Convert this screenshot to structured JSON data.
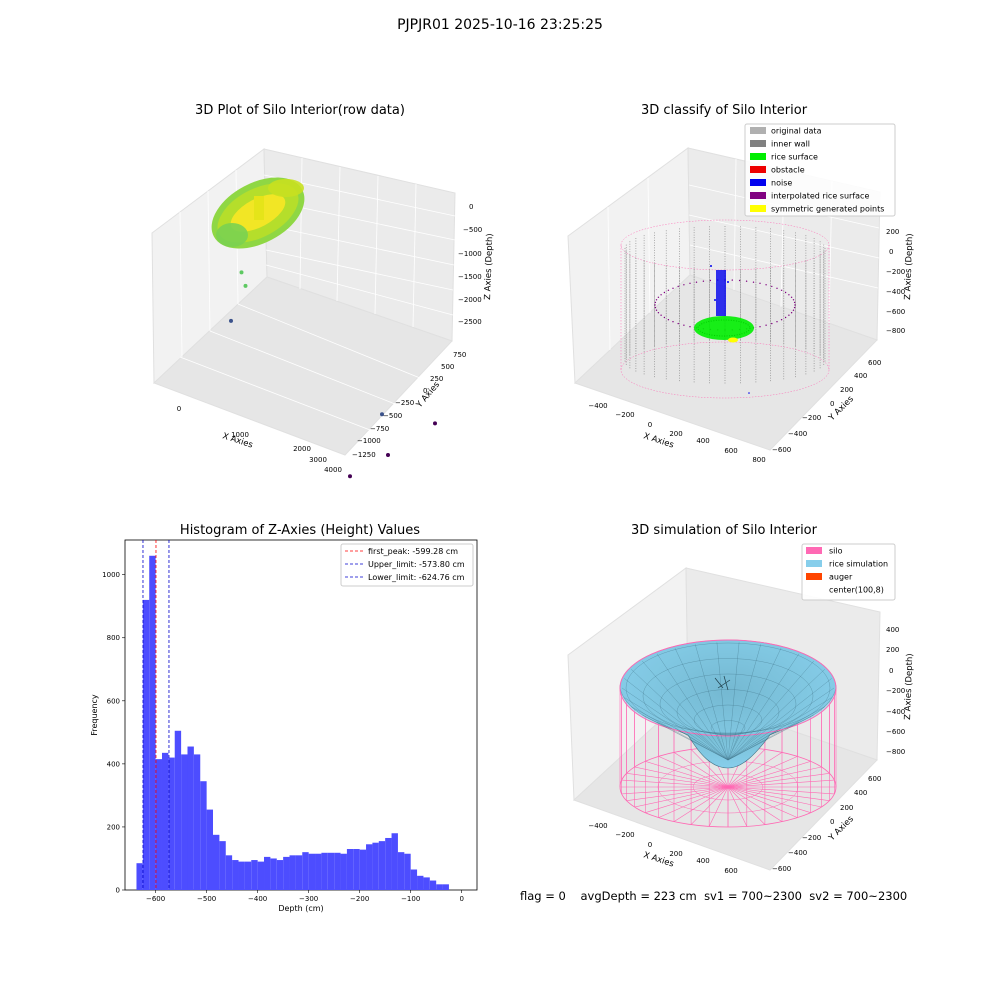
{
  "figure": {
    "suptitle": "PJPJR01 2025-10-16 23:25:25",
    "footer": {
      "flag": "flag = 0",
      "avg_depth": "avgDepth = 223 cm",
      "sv1": "sv1 = 700~2300",
      "sv2": "sv2 = 700~2300"
    }
  },
  "chart_data": [
    {
      "type": "scatter3d",
      "title": "3D Plot of Silo Interior(row data)",
      "xlabel": "X Axies",
      "ylabel": "Y Axies",
      "zlabel": "Z Axies (Depth)",
      "x_ticks": [
        "0",
        "1000",
        "2000",
        "3000",
        "4000"
      ],
      "y_ticks": [
        "750",
        "500",
        "250",
        "0",
        "−250",
        "−500",
        "−750",
        "−1000",
        "−1250"
      ],
      "z_ticks": [
        "0",
        "−500",
        "−1000",
        "−1500",
        "−2000",
        "−2500"
      ],
      "colormap": "viridis",
      "points": [
        {
          "x": 3200,
          "y": 100,
          "z": -2400
        },
        {
          "x": 3600,
          "y": 400,
          "z": -2700
        },
        {
          "x": 3500,
          "y": -50,
          "z": -2900
        },
        {
          "x": 3400,
          "y": -400,
          "z": -3000
        },
        {
          "x": 3000,
          "y": -800,
          "z": -3050
        },
        {
          "x": 3100,
          "y": -700,
          "z": -3000
        },
        {
          "x": 600,
          "y": 300,
          "z": -2200
        },
        {
          "x": 900,
          "y": 200,
          "z": -900
        },
        {
          "x": 1100,
          "y": 100,
          "z": -950
        }
      ]
    },
    {
      "type": "scatter3d",
      "title": "3D classify of Silo Interior",
      "xlabel": "X Axies",
      "ylabel": "Y Axies",
      "zlabel": "Z Axies (Depth)",
      "x_ticks": [
        "−400",
        "−200",
        "0",
        "200",
        "400",
        "600",
        "800"
      ],
      "y_ticks": [
        "600",
        "400",
        "200",
        "0",
        "−200",
        "−400",
        "−600"
      ],
      "z_ticks": [
        "200",
        "0",
        "−200",
        "−400",
        "−600",
        "−800"
      ],
      "legend_position": "top-right",
      "legend": [
        {
          "label": "original data",
          "color": "#b0b0b0"
        },
        {
          "label": "inner wall",
          "color": "#808080"
        },
        {
          "label": "rice surface",
          "color": "#00ee00"
        },
        {
          "label": "obstacle",
          "color": "#ee0000"
        },
        {
          "label": "noise",
          "color": "#0000ee"
        },
        {
          "label": "interpolated rice surface",
          "color": "#800080"
        },
        {
          "label": "symmetric generated points",
          "color": "#ffff00"
        }
      ]
    },
    {
      "type": "bar",
      "title": "Histogram of Z-Axies (Height) Values",
      "xlabel": "Depth (cm)",
      "ylabel": "Frequency",
      "xlim": [
        -660,
        30
      ],
      "ylim": [
        0,
        1110
      ],
      "x_ticks": [
        -600,
        -500,
        -400,
        -300,
        -200,
        -100,
        0
      ],
      "x_tick_labels": [
        "−600",
        "−500",
        "−400",
        "−300",
        "−200",
        "−100",
        "0"
      ],
      "y_ticks": [
        0,
        200,
        400,
        600,
        800,
        1000
      ],
      "bar_color": "#4d4dff",
      "bin_width": 12.5,
      "bin_start": -637.5,
      "values": [
        85,
        920,
        1060,
        415,
        435,
        420,
        505,
        430,
        455,
        430,
        345,
        255,
        175,
        155,
        110,
        95,
        90,
        90,
        95,
        90,
        105,
        100,
        95,
        105,
        110,
        110,
        120,
        115,
        115,
        118,
        118,
        118,
        115,
        130,
        130,
        128,
        145,
        150,
        155,
        165,
        180,
        120,
        115,
        65,
        45,
        40,
        30,
        18,
        18
      ],
      "lines": [
        {
          "x": -599.28,
          "color": "#ff0000",
          "label": "first_peak: -599.28 cm"
        },
        {
          "x": -573.8,
          "color": "#0000cc",
          "label": "Upper_limit: -573.80 cm"
        },
        {
          "x": -624.76,
          "color": "#0000cc",
          "label": "Lower_limit: -624.76 cm"
        }
      ],
      "legend_position": "top-right"
    },
    {
      "type": "surface3d",
      "title": "3D simulation of Silo Interior",
      "xlabel": "X Axies",
      "ylabel": "Y Axies",
      "zlabel": "Z Axies (Depth)",
      "x_ticks": [
        "−400",
        "−200",
        "0",
        "200",
        "400",
        "600"
      ],
      "y_ticks": [
        "600",
        "400",
        "200",
        "0",
        "−200",
        "−400",
        "−600"
      ],
      "z_ticks": [
        "400",
        "200",
        "0",
        "−200",
        "−400",
        "−600",
        "−800"
      ],
      "legend_position": "top-right",
      "legend": [
        {
          "label": "silo",
          "color": "#ff69b4"
        },
        {
          "label": "rice simulation",
          "color": "#87ceeb"
        },
        {
          "label": "auger",
          "color": "#ff4500"
        },
        {
          "label": "center(100,8)",
          "color": ""
        }
      ]
    }
  ]
}
